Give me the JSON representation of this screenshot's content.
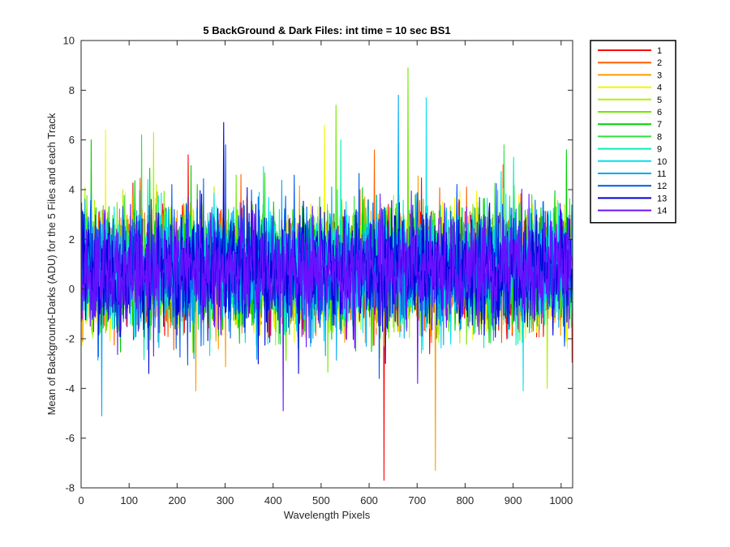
{
  "chart_data": {
    "type": "line",
    "title": "5 BackGround & Dark Files: int time = 10 sec   BS1",
    "xlabel": "Wavelength Pixels",
    "ylabel": "Mean of Background-Darks (ADU) for the 5 Files and each Track",
    "xlim": [
      0,
      1024
    ],
    "ylim": [
      -8,
      10
    ],
    "x_ticks": [
      0,
      100,
      200,
      300,
      400,
      500,
      600,
      700,
      800,
      900,
      1000
    ],
    "y_ticks": [
      -8,
      -6,
      -4,
      -2,
      0,
      2,
      4,
      6,
      8,
      10
    ],
    "legend_position": "outside-top-right",
    "n_points": 1024,
    "series": [
      {
        "name": "1",
        "color": "#ff0000",
        "mean": 0.8,
        "spread": 1.15,
        "spikes": [
          [
            630,
            -7.7
          ],
          [
            222,
            5.4
          ]
        ]
      },
      {
        "name": "2",
        "color": "#ff5e00",
        "mean": 0.8,
        "spread": 1.15,
        "spikes": [
          [
            610,
            5.6
          ],
          [
            130,
            -2.8
          ]
        ]
      },
      {
        "name": "3",
        "color": "#ff9a00",
        "mean": 0.8,
        "spread": 1.15,
        "spikes": [
          [
            737,
            -7.3
          ],
          [
            238,
            -4.1
          ]
        ]
      },
      {
        "name": "4",
        "color": "#f5f500",
        "mean": 0.8,
        "spread": 1.15,
        "spikes": [
          [
            506,
            6.6
          ],
          [
            50,
            6.4
          ]
        ]
      },
      {
        "name": "5",
        "color": "#b4f000",
        "mean": 0.8,
        "spread": 1.15,
        "spikes": [
          [
            970,
            -4.0
          ],
          [
            150,
            6.3
          ]
        ]
      },
      {
        "name": "6",
        "color": "#70e800",
        "mean": 0.8,
        "spread": 1.15,
        "spikes": [
          [
            680,
            8.9
          ],
          [
            530,
            7.4
          ]
        ]
      },
      {
        "name": "7",
        "color": "#00d000",
        "mean": 0.8,
        "spread": 1.15,
        "spikes": [
          [
            20,
            6.0
          ],
          [
            1010,
            5.6
          ]
        ]
      },
      {
        "name": "8",
        "color": "#2fe040",
        "mean": 0.8,
        "spread": 1.15,
        "spikes": [
          [
            125,
            6.2
          ],
          [
            880,
            5.8
          ]
        ]
      },
      {
        "name": "9",
        "color": "#00f0b4",
        "mean": 0.8,
        "spread": 1.15,
        "spikes": [
          [
            540,
            6.0
          ],
          [
            900,
            5.3
          ]
        ]
      },
      {
        "name": "10",
        "color": "#00e0f0",
        "mean": 0.8,
        "spread": 1.15,
        "spikes": [
          [
            718,
            7.7
          ],
          [
            920,
            -4.1
          ]
        ]
      },
      {
        "name": "11",
        "color": "#00a8f0",
        "mean": 0.8,
        "spread": 1.15,
        "spikes": [
          [
            660,
            7.8
          ],
          [
            42,
            -5.1
          ]
        ]
      },
      {
        "name": "12",
        "color": "#0058e8",
        "mean": 0.8,
        "spread": 1.15,
        "spikes": [
          [
            300,
            5.8
          ],
          [
            620,
            -3.6
          ]
        ]
      },
      {
        "name": "13",
        "color": "#0000d8",
        "mean": 0.8,
        "spread": 1.15,
        "spikes": [
          [
            296,
            6.7
          ],
          [
            140,
            -3.4
          ]
        ]
      },
      {
        "name": "14",
        "color": "#6a10ff",
        "mean": 0.8,
        "spread": 1.15,
        "spikes": [
          [
            420,
            -4.9
          ],
          [
            700,
            -3.8
          ]
        ]
      }
    ]
  }
}
